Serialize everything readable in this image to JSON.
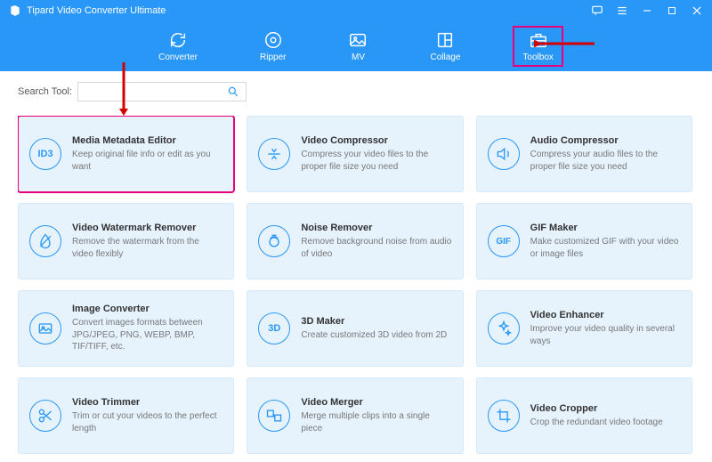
{
  "colors": {
    "brand": "#2997f7",
    "highlight": "#e6007e",
    "card_bg": "#e6f3fd",
    "card_border": "#d4e9f9",
    "arrow": "#d40000"
  },
  "window": {
    "title": "Tipard Video Converter Ultimate"
  },
  "nav": {
    "items": [
      {
        "id": "converter",
        "label": "Converter",
        "icon": "refresh"
      },
      {
        "id": "ripper",
        "label": "Ripper",
        "icon": "disc"
      },
      {
        "id": "mv",
        "label": "MV",
        "icon": "image"
      },
      {
        "id": "collage",
        "label": "Collage",
        "icon": "collage"
      },
      {
        "id": "toolbox",
        "label": "Toolbox",
        "icon": "briefcase",
        "active": true
      }
    ]
  },
  "search": {
    "label": "Search Tool:",
    "placeholder": ""
  },
  "tools": [
    {
      "icon": "ID3",
      "title": "Media Metadata Editor",
      "desc": "Keep original file info or edit as you want",
      "highlight": true
    },
    {
      "icon": "compress",
      "title": "Video Compressor",
      "desc": "Compress your video files to the proper file size you need"
    },
    {
      "icon": "audio-compress",
      "title": "Audio Compressor",
      "desc": "Compress your audio files to the proper file size you need"
    },
    {
      "icon": "watermark",
      "title": "Video Watermark Remover",
      "desc": "Remove the watermark from the video flexibly"
    },
    {
      "icon": "noise",
      "title": "Noise Remover",
      "desc": "Remove background noise from audio of video"
    },
    {
      "icon": "GIF",
      "title": "GIF Maker",
      "desc": "Make customized GIF with your video or image files"
    },
    {
      "icon": "image-conv",
      "title": "Image Converter",
      "desc": "Convert images formats between JPG/JPEG, PNG, WEBP, BMP, TIF/TIFF, etc."
    },
    {
      "icon": "3D",
      "title": "3D Maker",
      "desc": "Create customized 3D video from 2D"
    },
    {
      "icon": "enhance",
      "title": "Video Enhancer",
      "desc": "Improve your video quality in several ways"
    },
    {
      "icon": "trim",
      "title": "Video Trimmer",
      "desc": "Trim or cut your videos to the perfect length"
    },
    {
      "icon": "merge",
      "title": "Video Merger",
      "desc": "Merge multiple clips into a single piece"
    },
    {
      "icon": "crop",
      "title": "Video Cropper",
      "desc": "Crop the redundant video footage"
    }
  ]
}
